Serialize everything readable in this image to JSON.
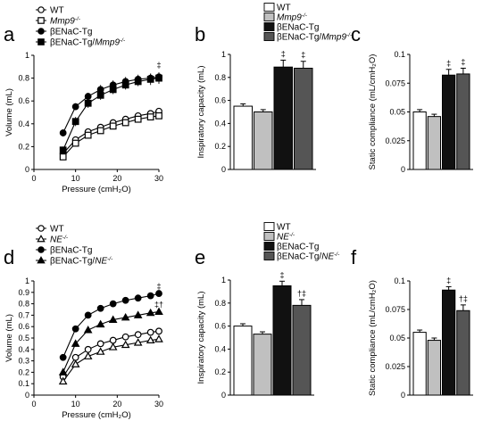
{
  "figure": {
    "panel_letters": [
      "a",
      "b",
      "c",
      "d",
      "e",
      "f"
    ]
  },
  "chart_data": [
    {
      "panel": "a",
      "type": "line",
      "title": "",
      "xlabel": "Pressure (cmH₂O)",
      "ylabel": "Volume (mL)",
      "xlim": [
        0,
        30
      ],
      "ylim": [
        0,
        1
      ],
      "xticks": [
        0,
        10,
        20,
        30
      ],
      "yticks": [
        0,
        0.2,
        0.4,
        0.6,
        0.8,
        1
      ],
      "x": [
        7,
        10,
        13,
        16,
        19,
        22,
        25,
        28,
        30
      ],
      "legend_position": "top",
      "series": [
        {
          "name": "WT",
          "marker": "open-circle",
          "values": [
            0.14,
            0.26,
            0.33,
            0.37,
            0.41,
            0.44,
            0.47,
            0.49,
            0.51
          ],
          "errors": [
            0.02,
            0.02,
            0.02,
            0.02,
            0.02,
            0.02,
            0.02,
            0.02,
            0.02
          ]
        },
        {
          "name": "Mmp9",
          "sup": "-/-",
          "italic": true,
          "marker": "open-square",
          "values": [
            0.11,
            0.23,
            0.3,
            0.34,
            0.38,
            0.41,
            0.44,
            0.46,
            0.47
          ],
          "errors": [
            0.02,
            0.02,
            0.02,
            0.02,
            0.02,
            0.02,
            0.02,
            0.02,
            0.02
          ]
        },
        {
          "name": "βENaC-Tg",
          "marker": "filled-circle",
          "values": [
            0.32,
            0.55,
            0.64,
            0.7,
            0.74,
            0.77,
            0.79,
            0.8,
            0.81
          ],
          "errors": [
            0.03,
            0.03,
            0.03,
            0.04,
            0.04,
            0.04,
            0.04,
            0.04,
            0.04
          ]
        },
        {
          "name": "βENaC-Tg/",
          "name2": "Mmp9",
          "sup": "-/-",
          "italic2": true,
          "marker": "filled-square",
          "values": [
            0.17,
            0.42,
            0.58,
            0.65,
            0.7,
            0.74,
            0.77,
            0.79,
            0.8
          ],
          "errors": [
            0.03,
            0.04,
            0.04,
            0.04,
            0.04,
            0.04,
            0.04,
            0.05,
            0.05
          ]
        }
      ],
      "annotations": [
        {
          "text": "‡",
          "x": 30,
          "y": 0.89
        }
      ]
    },
    {
      "panel": "b",
      "type": "bar",
      "title": "",
      "xlabel": "",
      "ylabel": "Inspiratory capacity (mL)",
      "ylim": [
        0,
        1
      ],
      "yticks": [
        0,
        0.2,
        0.4,
        0.6,
        0.8,
        1
      ],
      "categories": [
        "WT",
        "Mmp9-/-",
        "βENaC-Tg",
        "βENaC-Tg/Mmp9-/-"
      ],
      "values": [
        0.55,
        0.5,
        0.89,
        0.88
      ],
      "errors": [
        0.02,
        0.02,
        0.06,
        0.06
      ],
      "colors": [
        "#ffffff",
        "#c0c0c0",
        "#111111",
        "#555555"
      ],
      "significance": [
        "",
        "",
        "‡",
        "‡"
      ],
      "legend_position": "top",
      "legend": [
        {
          "name": "WT"
        },
        {
          "name": "Mmp9",
          "sup": "-/-",
          "italic": true
        },
        {
          "name": "βENaC-Tg"
        },
        {
          "name": "βENaC-Tg/",
          "name2": "Mmp9",
          "sup": "-/-",
          "italic2": true
        }
      ]
    },
    {
      "panel": "c",
      "type": "bar",
      "title": "",
      "xlabel": "",
      "ylabel": "Static compliance (mL/cmH₂O)",
      "ylim": [
        0,
        0.1
      ],
      "yticks": [
        0,
        0.025,
        0.05,
        0.075,
        0.1
      ],
      "ytick_labels": [
        "0",
        "0.025",
        "0.05",
        "0.075",
        "0.1"
      ],
      "categories": [
        "WT",
        "Mmp9-/-",
        "βENaC-Tg",
        "βENaC-Tg/Mmp9-/-"
      ],
      "values": [
        0.05,
        0.046,
        0.082,
        0.083
      ],
      "errors": [
        0.002,
        0.002,
        0.005,
        0.005
      ],
      "colors": [
        "#ffffff",
        "#c0c0c0",
        "#111111",
        "#555555"
      ],
      "significance": [
        "",
        "",
        "‡",
        "‡"
      ]
    },
    {
      "panel": "d",
      "type": "line",
      "title": "",
      "xlabel": "Pressure (cmH₂O)",
      "ylabel": "Volume (mL)",
      "xlim": [
        0,
        30
      ],
      "ylim": [
        0,
        1
      ],
      "xticks": [
        0,
        10,
        20,
        30
      ],
      "yticks": [
        0,
        0.1,
        0.2,
        0.3,
        0.4,
        0.5,
        0.6,
        0.7,
        0.8,
        0.9,
        1
      ],
      "x": [
        7,
        10,
        13,
        16,
        19,
        22,
        25,
        28,
        30
      ],
      "legend_position": "top",
      "series": [
        {
          "name": "WT",
          "marker": "open-circle",
          "values": [
            0.16,
            0.33,
            0.4,
            0.45,
            0.48,
            0.51,
            0.53,
            0.55,
            0.56
          ],
          "errors": [
            0.01,
            0.01,
            0.01,
            0.01,
            0.01,
            0.01,
            0.01,
            0.01,
            0.01
          ]
        },
        {
          "name": "NE",
          "sup": "-/-",
          "italic": true,
          "marker": "open-triangle",
          "values": [
            0.12,
            0.27,
            0.34,
            0.38,
            0.42,
            0.44,
            0.46,
            0.48,
            0.49
          ],
          "errors": [
            0.01,
            0.01,
            0.01,
            0.01,
            0.01,
            0.01,
            0.01,
            0.01,
            0.01
          ]
        },
        {
          "name": "βENaC-Tg",
          "marker": "filled-circle",
          "values": [
            0.33,
            0.58,
            0.7,
            0.76,
            0.8,
            0.83,
            0.85,
            0.87,
            0.89
          ],
          "errors": [
            0.02,
            0.02,
            0.02,
            0.02,
            0.02,
            0.02,
            0.02,
            0.02,
            0.02
          ]
        },
        {
          "name": "βENaC-Tg/",
          "name2": "NE",
          "sup": "-/-",
          "italic2": true,
          "marker": "filled-triangle",
          "values": [
            0.2,
            0.45,
            0.57,
            0.62,
            0.66,
            0.68,
            0.7,
            0.72,
            0.73
          ],
          "errors": [
            0.02,
            0.02,
            0.02,
            0.02,
            0.02,
            0.02,
            0.02,
            0.02,
            0.02
          ]
        }
      ],
      "annotations": [
        {
          "text": "‡",
          "x": 30,
          "y": 0.93
        },
        {
          "text": "‡†",
          "x": 30,
          "y": 0.77
        }
      ]
    },
    {
      "panel": "e",
      "type": "bar",
      "title": "",
      "xlabel": "",
      "ylabel": "Inspiratory capacity (mL)",
      "ylim": [
        0,
        1
      ],
      "yticks": [
        0,
        0.2,
        0.4,
        0.6,
        0.8,
        1
      ],
      "categories": [
        "WT",
        "NE-/-",
        "βENaC-Tg",
        "βENaC-Tg/NE-/-"
      ],
      "values": [
        0.6,
        0.53,
        0.95,
        0.78
      ],
      "errors": [
        0.02,
        0.02,
        0.04,
        0.05
      ],
      "colors": [
        "#ffffff",
        "#c0c0c0",
        "#111111",
        "#555555"
      ],
      "significance": [
        "",
        "",
        "‡",
        "†‡"
      ],
      "legend_position": "top",
      "legend": [
        {
          "name": "WT"
        },
        {
          "name": "NE",
          "sup": "-/-",
          "italic": true
        },
        {
          "name": "βENaC-Tg"
        },
        {
          "name": "βENaC-Tg/",
          "name2": "NE",
          "sup": "-/-",
          "italic2": true
        }
      ]
    },
    {
      "panel": "f",
      "type": "bar",
      "title": "",
      "xlabel": "",
      "ylabel": "Static compliance (mL/cmH₂O)",
      "ylim": [
        0,
        0.1
      ],
      "yticks": [
        0,
        0.025,
        0.05,
        0.075,
        0.1
      ],
      "ytick_labels": [
        "0",
        "0.025",
        "0.05",
        "0.075",
        "0.1"
      ],
      "categories": [
        "WT",
        "NE-/-",
        "βENaC-Tg",
        "βENaC-Tg/NE-/-"
      ],
      "values": [
        0.055,
        0.048,
        0.092,
        0.074
      ],
      "errors": [
        0.002,
        0.002,
        0.003,
        0.005
      ],
      "colors": [
        "#ffffff",
        "#c0c0c0",
        "#111111",
        "#555555"
      ],
      "significance": [
        "",
        "",
        "‡",
        "†‡"
      ]
    }
  ]
}
